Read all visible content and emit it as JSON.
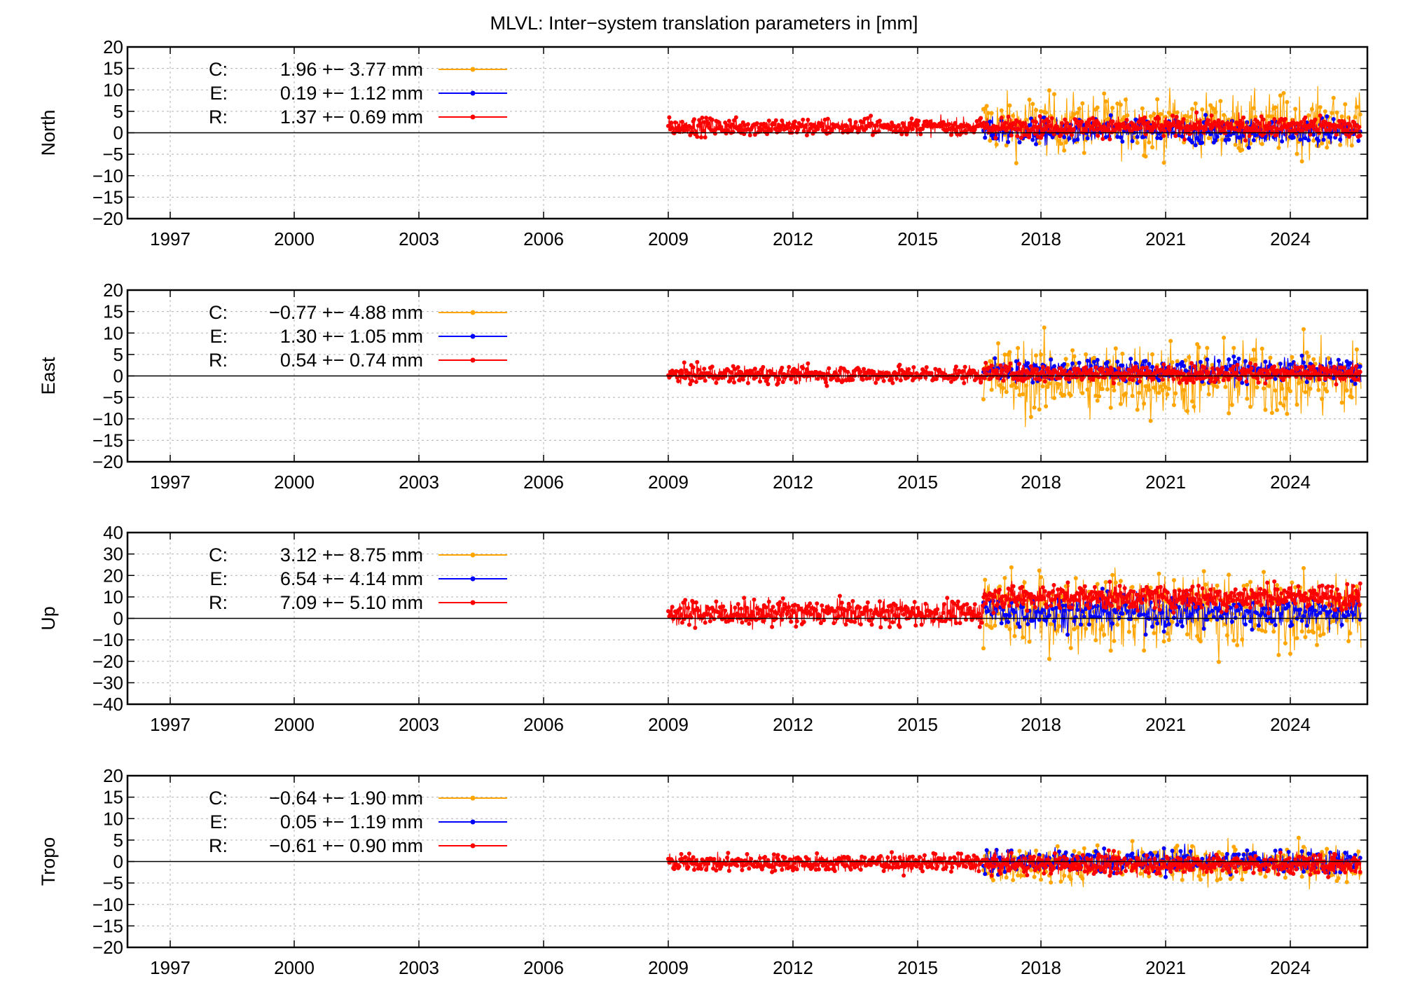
{
  "title": "MLVL: Inter−system translation parameters in [mm]",
  "x_ticks": [
    "1997",
    "2000",
    "2003",
    "2006",
    "2009",
    "2012",
    "2015",
    "2018",
    "2021",
    "2024"
  ],
  "series_styles": [
    {
      "key": "C",
      "color": "#ffa500"
    },
    {
      "key": "E",
      "color": "#0000ff"
    },
    {
      "key": "R",
      "color": "#ff0000"
    }
  ],
  "chart_data": [
    {
      "type": "line",
      "ylabel": "North",
      "ylim": [
        -20,
        20
      ],
      "y_ticks": [
        "20",
        "15",
        "10",
        "5",
        "0",
        "−5",
        "−10",
        "−15",
        "−20"
      ],
      "y_tick_values": [
        20,
        15,
        10,
        5,
        0,
        -5,
        -10,
        -15,
        -20
      ],
      "series": [
        {
          "name": "C:",
          "mean": "1.96",
          "sigma": "3.77",
          "unit": "mm",
          "color": "#ffa500"
        },
        {
          "name": "E:",
          "mean": "0.19",
          "sigma": "1.12",
          "unit": "mm",
          "color": "#0000ff"
        },
        {
          "name": "R:",
          "mean": "1.37",
          "sigma": "0.69",
          "unit": "mm",
          "color": "#ff0000"
        }
      ],
      "xlim": [
        1996,
        2025.8
      ],
      "grid": true
    },
    {
      "type": "line",
      "ylabel": "East",
      "ylim": [
        -20,
        20
      ],
      "y_ticks": [
        "20",
        "15",
        "10",
        "5",
        "0",
        "−5",
        "−10",
        "−15",
        "−20"
      ],
      "y_tick_values": [
        20,
        15,
        10,
        5,
        0,
        -5,
        -10,
        -15,
        -20
      ],
      "series": [
        {
          "name": "C:",
          "mean": "−0.77",
          "sigma": "4.88",
          "unit": "mm",
          "color": "#ffa500"
        },
        {
          "name": "E:",
          "mean": "1.30",
          "sigma": "1.05",
          "unit": "mm",
          "color": "#0000ff"
        },
        {
          "name": "R:",
          "mean": "0.54",
          "sigma": "0.74",
          "unit": "mm",
          "color": "#ff0000"
        }
      ],
      "xlim": [
        1996,
        2025.8
      ],
      "grid": true
    },
    {
      "type": "line",
      "ylabel": "Up",
      "ylim": [
        -40,
        40
      ],
      "y_ticks": [
        "40",
        "30",
        "20",
        "10",
        "0",
        "−10",
        "−20",
        "−30",
        "−40"
      ],
      "y_tick_values": [
        40,
        30,
        20,
        10,
        0,
        -10,
        -20,
        -30,
        -40
      ],
      "series": [
        {
          "name": "C:",
          "mean": "3.12",
          "sigma": "8.75",
          "unit": "mm",
          "color": "#ffa500"
        },
        {
          "name": "E:",
          "mean": "6.54",
          "sigma": "4.14",
          "unit": "mm",
          "color": "#0000ff"
        },
        {
          "name": "R:",
          "mean": "7.09",
          "sigma": "5.10",
          "unit": "mm",
          "color": "#ff0000"
        }
      ],
      "xlim": [
        1996,
        2025.8
      ],
      "grid": true
    },
    {
      "type": "line",
      "ylabel": "Tropo",
      "ylim": [
        -20,
        20
      ],
      "y_ticks": [
        "20",
        "15",
        "10",
        "5",
        "0",
        "−5",
        "−10",
        "−15",
        "−20"
      ],
      "y_tick_values": [
        20,
        15,
        10,
        5,
        0,
        -5,
        -10,
        -15,
        -20
      ],
      "series": [
        {
          "name": "C:",
          "mean": "−0.64",
          "sigma": "1.90",
          "unit": "mm",
          "color": "#ffa500"
        },
        {
          "name": "E:",
          "mean": "0.05",
          "sigma": "1.19",
          "unit": "mm",
          "color": "#0000ff"
        },
        {
          "name": "R:",
          "mean": "−0.61",
          "sigma": "0.90",
          "unit": "mm",
          "color": "#ff0000"
        }
      ],
      "xlim": [
        1996,
        2025.8
      ],
      "grid": true
    }
  ]
}
